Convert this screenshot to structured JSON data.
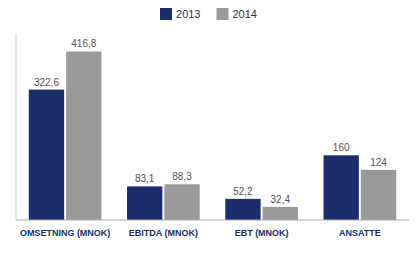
{
  "chart_data": {
    "type": "bar",
    "categories": [
      "OMSETNING (MNOK)",
      "EBITDA (MNOK)",
      "EBT (MNOK)",
      "ANSATTE"
    ],
    "series": [
      {
        "name": "2013",
        "color": "#1b2d6b",
        "values": [
          322.6,
          83.1,
          52.2,
          160
        ],
        "value_labels": [
          "322,6",
          "83,1",
          "52,2",
          "160"
        ]
      },
      {
        "name": "2014",
        "color": "#9a9a9a",
        "values": [
          416.8,
          88.3,
          32.4,
          124
        ],
        "value_labels": [
          "416,8",
          "88,3",
          "32,4",
          "124"
        ]
      }
    ],
    "ylim": [
      0,
      460
    ],
    "data_labels": true,
    "tick_labels": "x",
    "legend": "top"
  }
}
